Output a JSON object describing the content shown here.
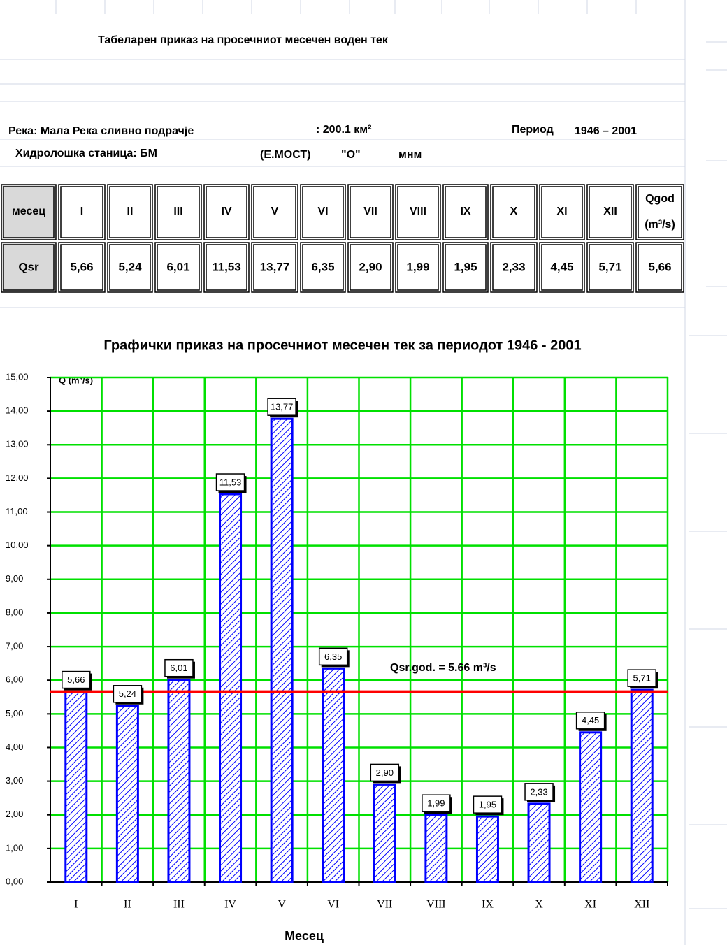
{
  "header": {
    "title": "Табеларен приказ на просечниот месечен воден тек",
    "river": "Река: Мала Река сливно подрачје",
    "area": ": 200.1 км²",
    "period_label": "Период",
    "period": "1946 – 2001",
    "station": "Хидролошка станица: БМ",
    "station_name": "(Е.МОСТ)",
    "station_code": "\"О\"",
    "altitude_unit": "мнм"
  },
  "table": {
    "header": [
      "месец",
      "I",
      "II",
      "III",
      "IV",
      "V",
      "VI",
      "VII",
      "VIII",
      "IX",
      "X",
      "XI",
      "XII",
      "Qgod"
    ],
    "header_unit": "(m³/s)",
    "row": [
      "Qsr",
      "5,66",
      "5,24",
      "6,01",
      "11,53",
      "13,77",
      "6,35",
      "2,90",
      "1,99",
      "1,95",
      "2,33",
      "4,45",
      "5,71",
      "5,66"
    ]
  },
  "chart_data": {
    "type": "bar",
    "title": "Графички приказ на просечниот месечен тек за периодот 1946 - 2001",
    "y_label": "Q (m³/s)",
    "x_label": "Месец",
    "categories": [
      "I",
      "II",
      "III",
      "IV",
      "V",
      "VI",
      "VII",
      "VIII",
      "IX",
      "X",
      "XI",
      "XII"
    ],
    "values": [
      5.66,
      5.24,
      6.01,
      11.53,
      13.77,
      6.35,
      2.9,
      1.99,
      1.95,
      2.33,
      4.45,
      5.71
    ],
    "value_labels": [
      "5,66",
      "5,24",
      "6,01",
      "11,53",
      "13,77",
      "6,35",
      "2,90",
      "1,99",
      "1,95",
      "2,33",
      "4,45",
      "5,71"
    ],
    "color": "#0000ff",
    "grid": true,
    "grid_color": "#00e000",
    "ylim": [
      0,
      15
    ],
    "yticks": [
      {
        "value": 0,
        "label": "0,00"
      },
      {
        "value": 1,
        "label": "1,00"
      },
      {
        "value": 2,
        "label": "2,00"
      },
      {
        "value": 3,
        "label": "3,00"
      },
      {
        "value": 4,
        "label": "4,00"
      },
      {
        "value": 5,
        "label": "5,00"
      },
      {
        "value": 6,
        "label": "6,00"
      },
      {
        "value": 7,
        "label": "7,00"
      },
      {
        "value": 8,
        "label": "8,00"
      },
      {
        "value": 9,
        "label": "9,00"
      },
      {
        "value": 10,
        "label": "10,00"
      },
      {
        "value": 11,
        "label": "11,00"
      },
      {
        "value": 12,
        "label": "12,00"
      },
      {
        "value": 13,
        "label": "13,00"
      },
      {
        "value": 14,
        "label": "14,00"
      },
      {
        "value": 15,
        "label": "15,00"
      }
    ],
    "mean_line": {
      "value": 5.66,
      "label": "Qsr.god. = 5.66 m³/s",
      "color": "#ff0000"
    }
  }
}
